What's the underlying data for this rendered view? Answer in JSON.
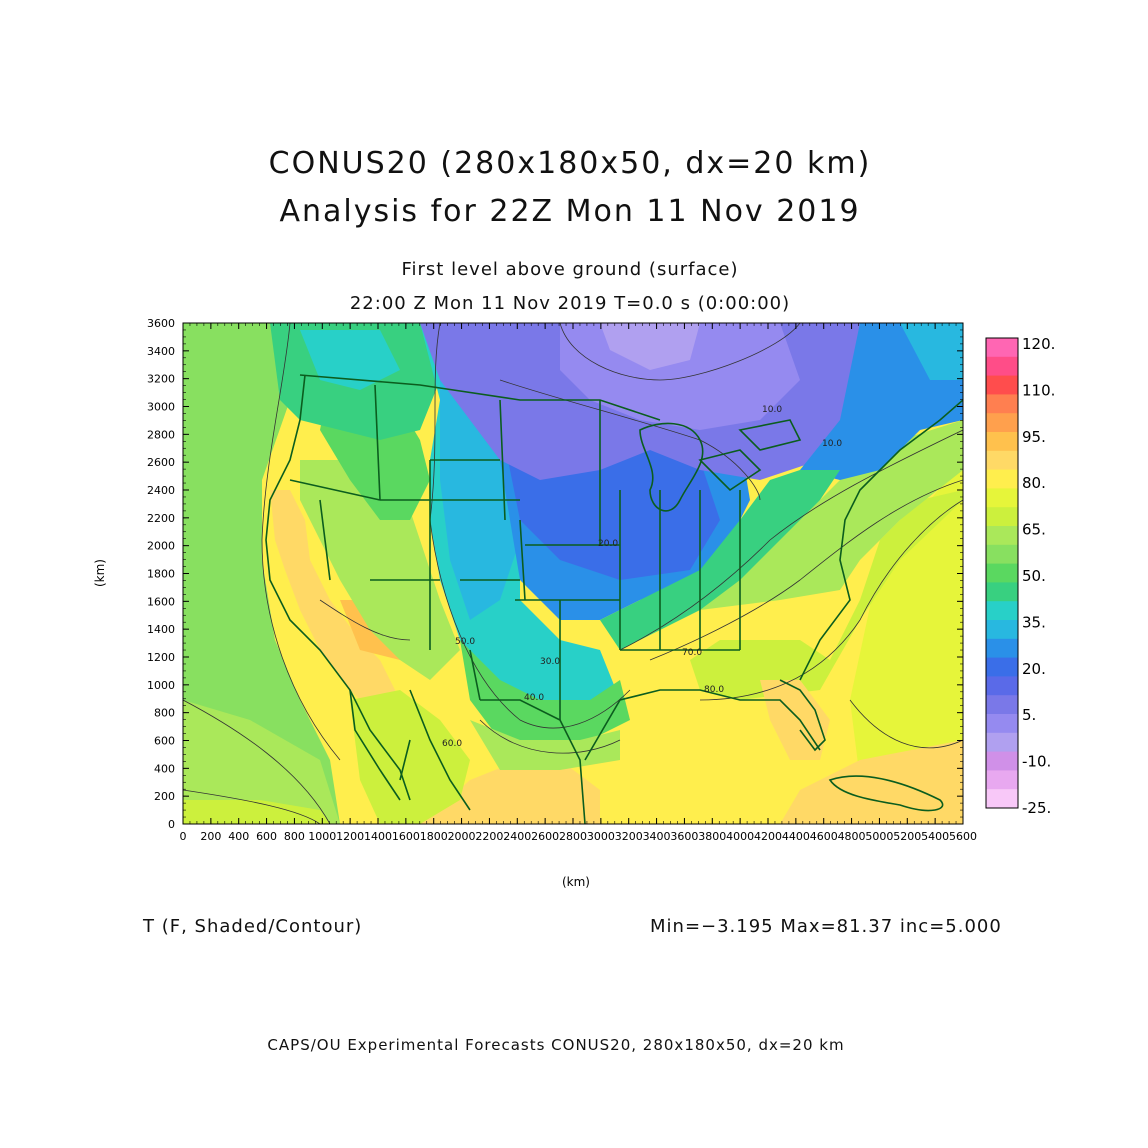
{
  "header": {
    "title_line1": "CONUS20 (280x180x50, dx=20 km)",
    "title_line2": "Analysis for 22Z Mon 11 Nov 2019",
    "subtitle_line1": "First level above ground (surface)",
    "subtitle_line2": "22:00 Z Mon 11 Nov 2019    T=0.0 s (0:00:00)"
  },
  "axes": {
    "x_label": "(km)",
    "y_label": "(km)",
    "x_ticks": [
      "0",
      "200",
      "400",
      "600",
      "800",
      "1000",
      "1200",
      "1400",
      "1600",
      "1800",
      "2000",
      "2200",
      "2400",
      "2600",
      "2800",
      "3000",
      "3200",
      "3400",
      "3600",
      "3800",
      "4000",
      "4200",
      "4400",
      "4600",
      "4800",
      "5000",
      "5200",
      "5400",
      "5600"
    ],
    "y_ticks": [
      "0",
      "200",
      "400",
      "600",
      "800",
      "1000",
      "1200",
      "1400",
      "1600",
      "1800",
      "2000",
      "2200",
      "2400",
      "2600",
      "2800",
      "3000",
      "3200",
      "3400",
      "3600"
    ],
    "x_range_km": [
      0,
      5600
    ],
    "y_range_km": [
      0,
      3600
    ]
  },
  "colorbar": {
    "labels": [
      "120.",
      "110.",
      "95.",
      "80.",
      "65.",
      "50.",
      "35.",
      "20.",
      "5.",
      "-10.",
      "-25."
    ],
    "colors": [
      "#ff66b3",
      "#ff4d88",
      "#ff4d4d",
      "#ff7f50",
      "#ffa04d",
      "#ffc14d",
      "#ffd966",
      "#ffee4d",
      "#e6f53a",
      "#ccf03d",
      "#aae85a",
      "#88e060",
      "#5ad860",
      "#38d080",
      "#28d0c8",
      "#28b8e0",
      "#2a90e8",
      "#3a6ee8",
      "#5a6ae8",
      "#7a78e8",
      "#958af0",
      "#b0a0f0",
      "#d090e8",
      "#e8a8f0",
      "#f8c8f8"
    ]
  },
  "contour_labels": [
    "10.0",
    "10.0",
    "20.0",
    "30.0",
    "40.0",
    "50.0",
    "60.0",
    "70.0",
    "80.0"
  ],
  "field": {
    "name_label": "T (F, Shaded/Contour)",
    "stats": "Min=−3.195 Max=81.37 inc=5.000"
  },
  "footer": "CAPS/OU Experimental Forecasts  CONUS20, 280x180x50, dx=20 km"
}
